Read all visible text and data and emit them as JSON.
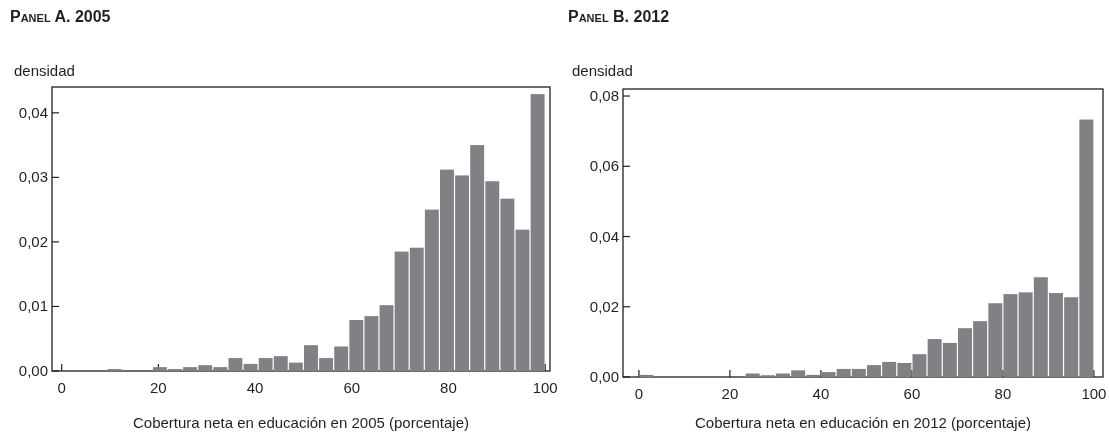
{
  "chart_data": [
    {
      "type": "histogram",
      "title": "Panel A. 2005",
      "ylabel": "densidad",
      "xlabel": "Cobertura neta en educación en 2005 (porcentaje)",
      "color": "#808185",
      "bins": [
        0,
        3.125,
        6.25,
        9.375,
        12.5,
        15.625,
        18.75,
        21.875,
        25,
        28.125,
        31.25,
        34.375,
        37.5,
        40.625,
        43.75,
        46.875,
        50,
        53.125,
        56.25,
        59.375,
        62.5,
        65.625,
        68.75,
        71.875,
        75,
        78.125,
        81.25,
        84.375,
        87.5,
        90.625,
        93.75,
        96.875,
        100
      ],
      "values": [
        0,
        0,
        0,
        0.0003,
        0,
        0,
        0.0006,
        0.0003,
        0.0006,
        0.0009,
        0.0006,
        0.002,
        0.0011,
        0.002,
        0.0023,
        0.0013,
        0.004,
        0.002,
        0.0038,
        0.0079,
        0.0085,
        0.0102,
        0.0185,
        0.0191,
        0.025,
        0.0312,
        0.0303,
        0.035,
        0.0294,
        0.0267,
        0.0219,
        0.0429
      ],
      "xlim": [
        -2,
        101
      ],
      "xticks": [
        0,
        20,
        40,
        60,
        80,
        100
      ],
      "ylim": [
        0,
        0.044
      ],
      "yticks": [
        {
          "value": 0,
          "label": "0,00"
        },
        {
          "value": 0.01,
          "label": "0,01"
        },
        {
          "value": 0.02,
          "label": "0,02"
        },
        {
          "value": 0.03,
          "label": "0,03"
        },
        {
          "value": 0.04,
          "label": "0,04"
        }
      ]
    },
    {
      "type": "histogram",
      "title": "Panel B. 2012",
      "ylabel": "densidad",
      "xlabel": "Cobertura neta en educación en 2012 (porcentaje)",
      "color": "#808185",
      "bins": [
        0,
        3.33,
        6.67,
        10,
        13.33,
        16.67,
        20,
        23.33,
        26.67,
        30,
        33.33,
        36.67,
        40,
        43.33,
        46.67,
        50,
        53.33,
        56.67,
        60,
        63.33,
        66.67,
        70,
        73.33,
        76.67,
        80,
        83.33,
        86.67,
        90,
        93.33,
        96.67,
        100
      ],
      "values": [
        0.0006,
        0,
        0,
        0,
        0,
        0,
        0,
        0.001,
        0.0005,
        0.001,
        0.0019,
        0.0006,
        0.0014,
        0.0023,
        0.0023,
        0.0034,
        0.0043,
        0.004,
        0.0065,
        0.0108,
        0.0097,
        0.0139,
        0.0159,
        0.021,
        0.0236,
        0.0241,
        0.0284,
        0.0239,
        0.0227,
        0.0733
      ],
      "xlim": [
        -3.5,
        102
      ],
      "xticks": [
        0,
        20,
        40,
        60,
        80,
        100
      ],
      "ylim": [
        0,
        0.082
      ],
      "yticks": [
        {
          "value": 0,
          "label": "0,00"
        },
        {
          "value": 0.02,
          "label": "0,02"
        },
        {
          "value": 0.04,
          "label": "0,04"
        },
        {
          "value": 0.06,
          "label": "0,06"
        },
        {
          "value": 0.08,
          "label": "0,08"
        }
      ]
    }
  ]
}
